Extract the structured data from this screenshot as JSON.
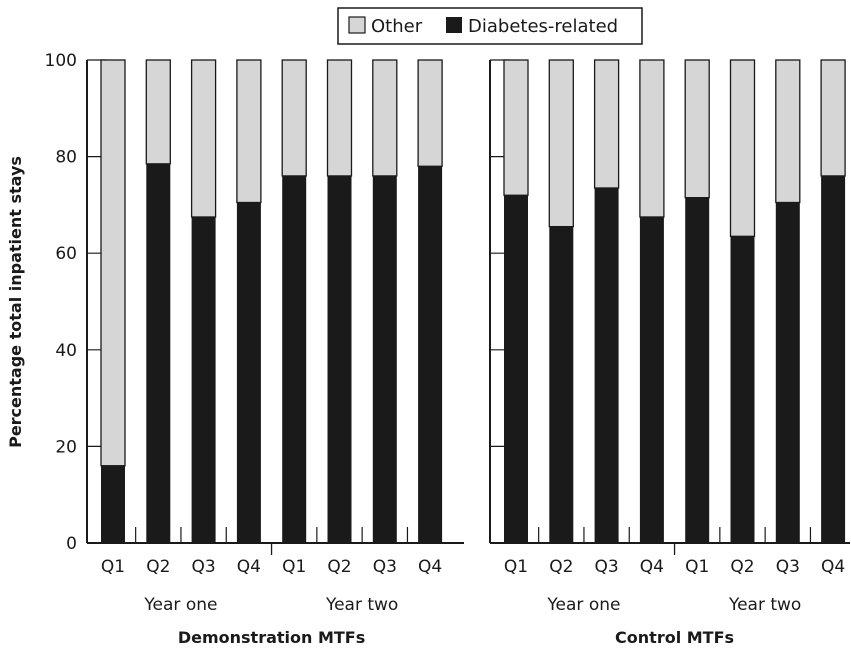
{
  "legend": {
    "other_label": "Other",
    "diabetes_label": "Diabetes-related"
  },
  "ylabel": "Percentage total inpatient stays",
  "colors": {
    "other": "#d6d6d6",
    "diabetes": "#1a1a1a",
    "axis": "#1a1a1a"
  },
  "chart_data": [
    {
      "type": "bar",
      "stacked": true,
      "title": "Demonstration MTFs",
      "categories": [
        "Q1",
        "Q2",
        "Q3",
        "Q4",
        "Q1",
        "Q2",
        "Q3",
        "Q4"
      ],
      "groups": [
        "Year one",
        "Year two"
      ],
      "series": [
        {
          "name": "Diabetes-related",
          "values": [
            16,
            78.5,
            67.5,
            70.5,
            76,
            76,
            76,
            78
          ]
        },
        {
          "name": "Other",
          "values": [
            84,
            21.5,
            32.5,
            29.5,
            24,
            24,
            24,
            22
          ]
        }
      ],
      "ylim": [
        0,
        100
      ],
      "yticks": [
        0,
        20,
        40,
        60,
        80,
        100
      ],
      "ylabel": "Percentage total inpatient stays",
      "legend_position": "top"
    },
    {
      "type": "bar",
      "stacked": true,
      "title": "Control MTFs",
      "categories": [
        "Q1",
        "Q2",
        "Q3",
        "Q4",
        "Q1",
        "Q2",
        "Q3",
        "Q4"
      ],
      "groups": [
        "Year one",
        "Year two"
      ],
      "series": [
        {
          "name": "Diabetes-related",
          "values": [
            72,
            65.5,
            73.5,
            67.5,
            71.5,
            63.5,
            70.5,
            76
          ]
        },
        {
          "name": "Other",
          "values": [
            28,
            34.5,
            26.5,
            32.5,
            28.5,
            36.5,
            29.5,
            24
          ]
        }
      ],
      "ylim": [
        0,
        100
      ],
      "yticks": [
        0,
        20,
        40,
        60,
        80,
        100
      ],
      "legend_position": "top"
    }
  ]
}
